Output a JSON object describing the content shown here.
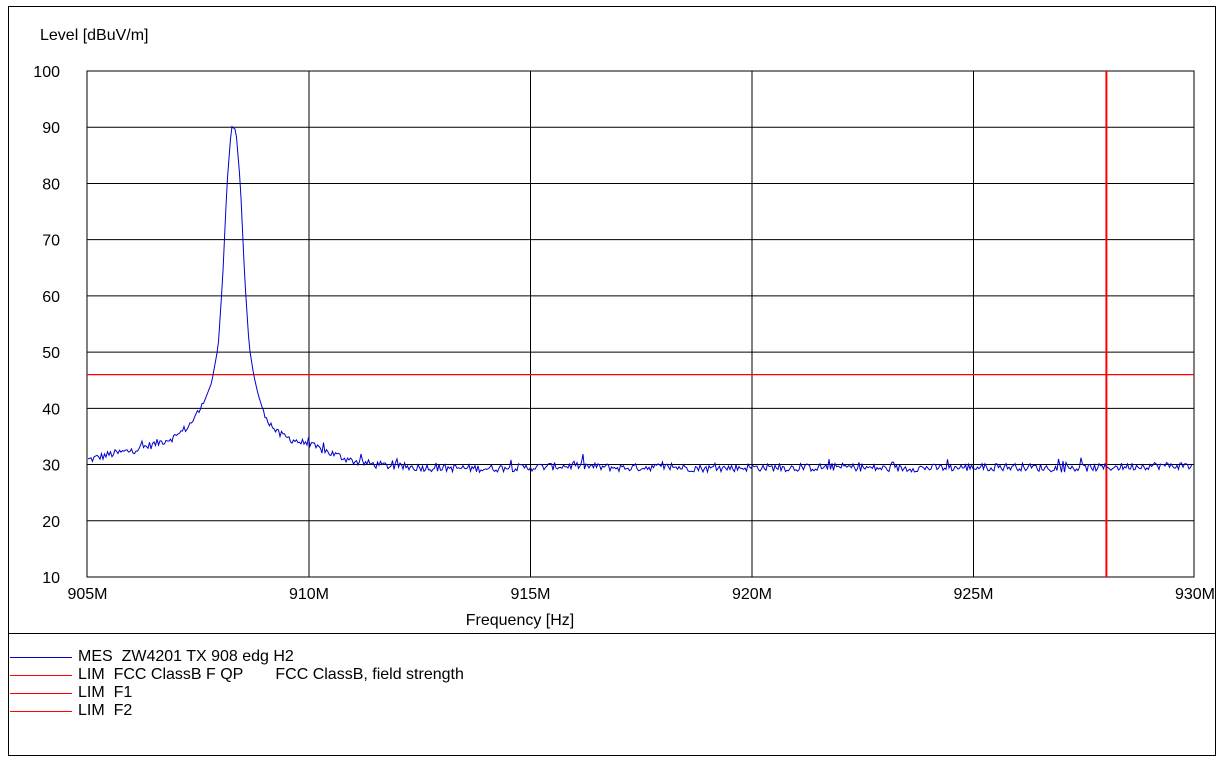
{
  "chart_data": {
    "type": "line",
    "ylabel": "Level [dBuV/m]",
    "xlabel": "Frequency [Hz]",
    "xlim": [
      904,
      929
    ],
    "ylim": [
      10,
      100
    ],
    "x_ticks": [
      905,
      910,
      915,
      920,
      925,
      930
    ],
    "x_tick_labels": [
      "905M",
      "910M",
      "915M",
      "920M",
      "925M",
      "930M"
    ],
    "y_ticks": [
      10,
      20,
      30,
      40,
      50,
      60,
      70,
      80,
      90,
      100
    ],
    "y_tick_labels": [
      "10",
      "20",
      "30",
      "40",
      "50",
      "60",
      "70",
      "80",
      "90",
      "100"
    ],
    "grid": true,
    "series": [
      {
        "name": "MES  ZW4201 TX 908 edg H2",
        "color": "#0000cc",
        "x": [
          904.0,
          904.5,
          905.0,
          905.5,
          906.0,
          906.5,
          907.0,
          907.3,
          907.6,
          907.8,
          907.95,
          908.05,
          908.15,
          908.25,
          908.35,
          908.45,
          908.55,
          908.65,
          908.75,
          908.85,
          908.95,
          909.1,
          909.3,
          909.6,
          910.0,
          910.5,
          911.0,
          911.5,
          912.0,
          913.0,
          914.0,
          915.0,
          916.0,
          917.0,
          918.0,
          919.0,
          920.0,
          921.0,
          922.0,
          923.0,
          924.0,
          925.0,
          926.0,
          927.0,
          928.0,
          929.0
        ],
        "values": [
          29.5,
          30.3,
          30.8,
          31.8,
          32.5,
          33.6,
          35.0,
          37.0,
          40.5,
          44.5,
          51.0,
          63.0,
          80.0,
          90.2,
          89.5,
          80.0,
          63.0,
          51.0,
          46.0,
          42.5,
          40.0,
          37.5,
          35.5,
          34.5,
          33.5,
          32.0,
          30.6,
          30.0,
          29.6,
          29.4,
          29.3,
          29.5,
          29.8,
          29.4,
          29.6,
          29.3,
          29.5,
          29.4,
          29.6,
          29.3,
          29.4,
          29.5,
          29.6,
          29.3,
          29.5,
          29.8
        ]
      }
    ],
    "limit_lines": [
      {
        "name": "LIM  FCC ClassB F QP",
        "orientation": "horizontal",
        "value": 46.0,
        "color": "#ff0000"
      },
      {
        "name": "LIM  F2",
        "orientation": "vertical",
        "value": 928.0,
        "color": "#ff0000"
      }
    ]
  },
  "legend": [
    {
      "color": "#0000cc",
      "label": "MES  ZW4201 TX 908 edg H2",
      "extra": ""
    },
    {
      "color": "#ff0000",
      "label": "LIM  FCC ClassB F QP",
      "extra": "FCC ClassB, field strength"
    },
    {
      "color": "#ff0000",
      "label": "LIM  F1",
      "extra": ""
    },
    {
      "color": "#ff0000",
      "label": "LIM  F2",
      "extra": ""
    }
  ]
}
